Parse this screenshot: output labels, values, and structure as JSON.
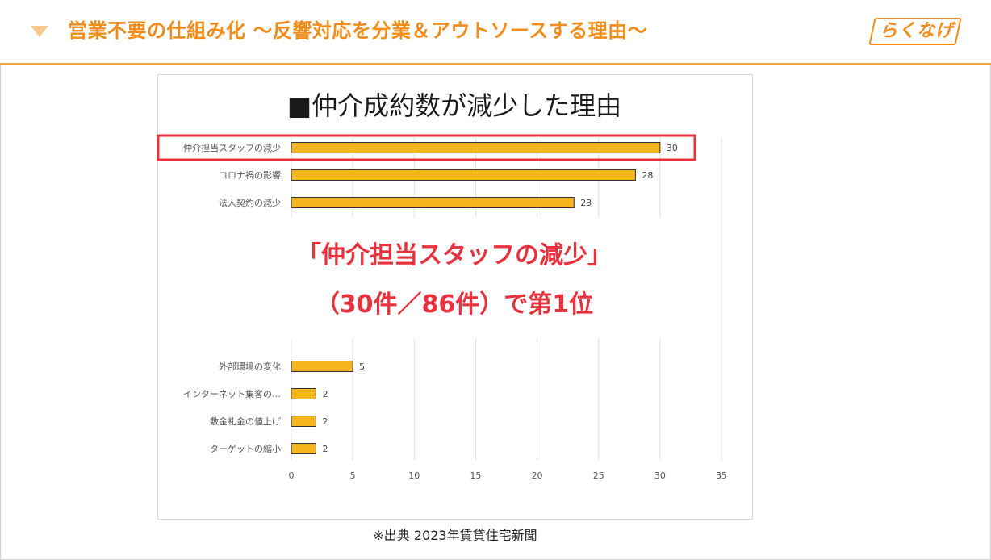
{
  "header": {
    "title": "営業不要の仕組み化 〜反響対応を分業＆アウトソースする理由〜",
    "logo_text": "らくなげ"
  },
  "chart_data": {
    "type": "bar",
    "orientation": "horizontal",
    "title": "■仲介成約数が減少した理由",
    "categories": [
      "仲介担当スタッフの減少",
      "コロナ禍の影響",
      "法人契約の減少",
      "外部環境の変化",
      "インターネット集客の…",
      "敷金礼金の値上げ",
      "ターゲットの縮小"
    ],
    "values": [
      30,
      28,
      23,
      5,
      2,
      2,
      2
    ],
    "xlim": [
      0,
      35
    ],
    "xticks": [
      0,
      5,
      10,
      15,
      20,
      25,
      30,
      35
    ],
    "grid": true,
    "bar_color": "#f5b51c",
    "highlight_color": "#e8333f",
    "highlight_index": 0
  },
  "callout": {
    "line1": "「仲介担当スタッフの減少」",
    "line2": "（30件／86件）で第1位"
  },
  "source": "※出典 2023年賃貸住宅新聞"
}
